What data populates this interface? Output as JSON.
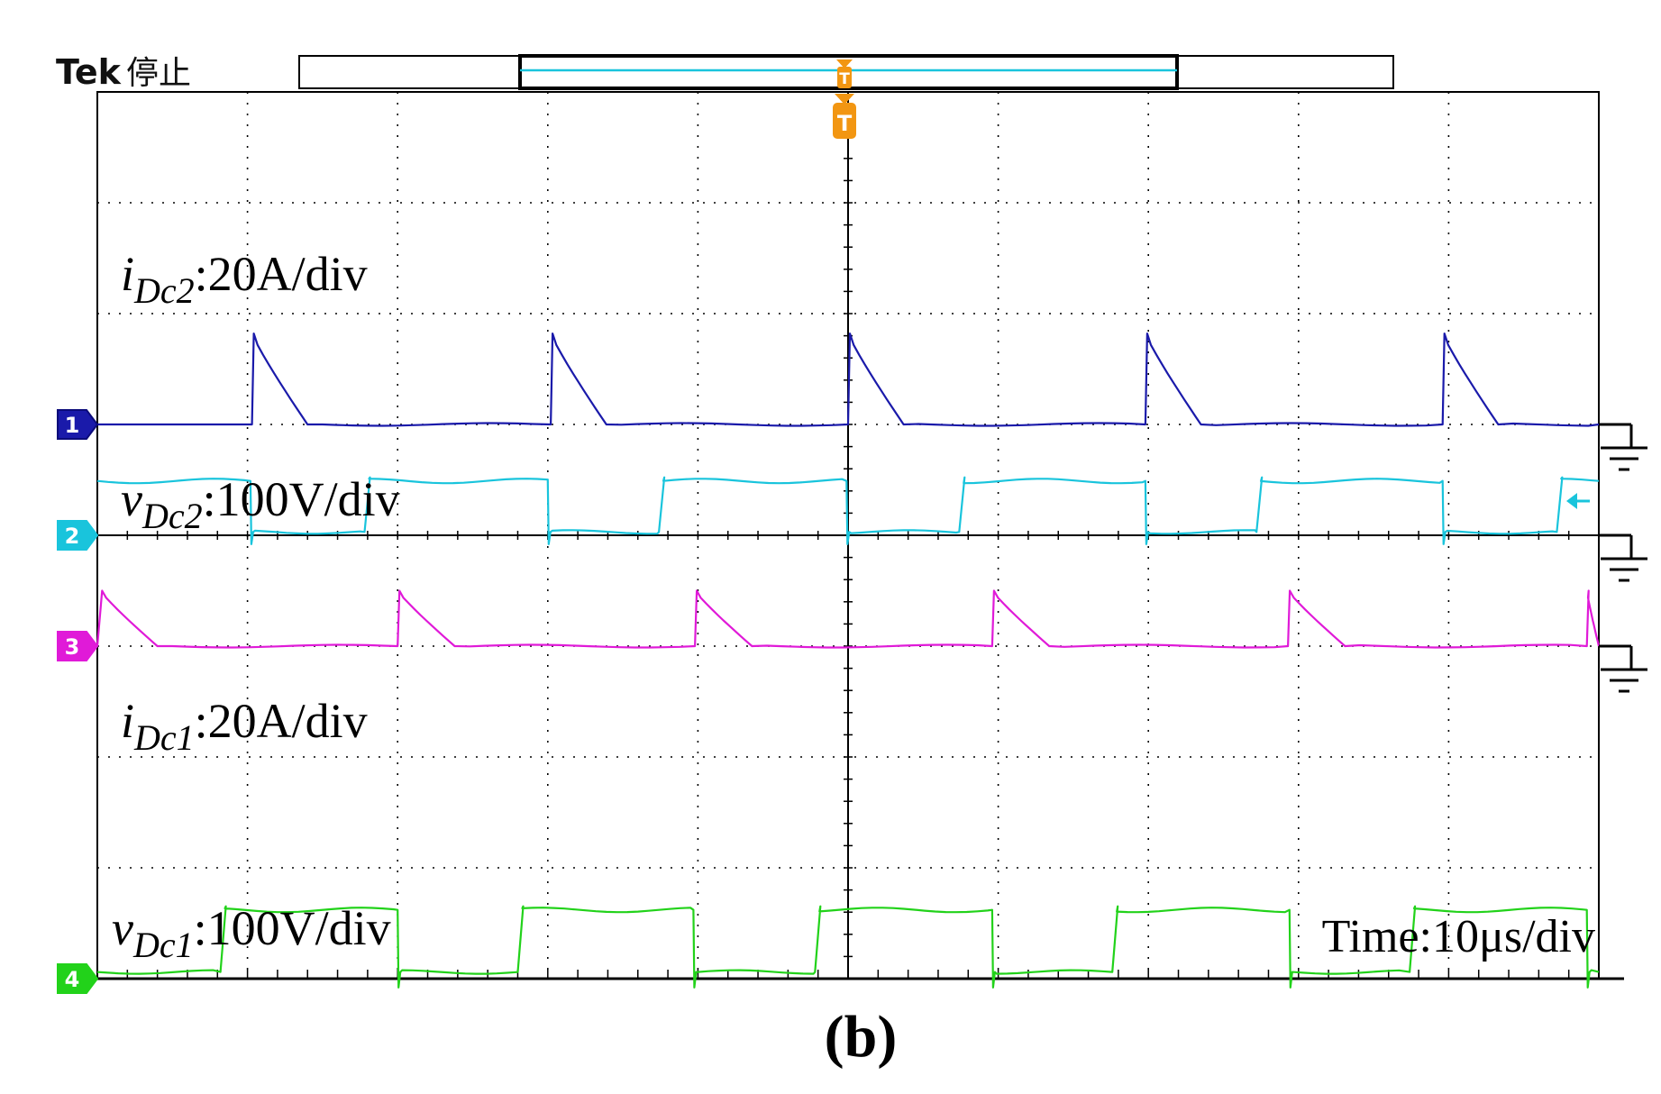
{
  "header": {
    "brand": "Tek",
    "status": "停止"
  },
  "caption": "(b)",
  "timebase_label": "Time:10μs/div",
  "trigger_marker": "T",
  "colors": {
    "ch1": "#1a1aaa",
    "ch2": "#19c4dc",
    "ch3": "#e01ad8",
    "ch4": "#22d21a",
    "trigger": "#f29612"
  },
  "chart_data": {
    "type": "line",
    "title": "",
    "xlabel": "Time",
    "x_scale": "10μs/div",
    "x_divisions": 10,
    "y_divisions": 8,
    "grid": true,
    "series": [
      {
        "channel": "1",
        "name": "i_Dc2",
        "label_main": "i",
        "label_sub": "Dc2",
        "label_scale": ":20A/div",
        "scale": "20A/div",
        "baseline_div": 5.0,
        "waveform": "current-pulse",
        "peak_div": 0.82,
        "low_div": 0.0,
        "edges_div": [
          1.03,
          3.02,
          5.0,
          6.98,
          8.96
        ],
        "decay_div": 0.37
      },
      {
        "channel": "2",
        "name": "v_Dc2",
        "label_main": "v",
        "label_sub": "Dc2",
        "label_scale": ":100V/div",
        "scale": "100V/div",
        "baseline_div": 4.0,
        "waveform": "voltage-square",
        "high_div": 0.49,
        "low_div": 0.03,
        "rise_div": [
          1.78,
          3.74,
          5.74,
          7.72,
          9.72
        ],
        "fall_div": [
          1.02,
          3.0,
          4.99,
          6.98,
          8.96
        ]
      },
      {
        "channel": "3",
        "name": "i_Dc1",
        "label_main": "i",
        "label_sub": "Dc1",
        "label_scale": ":20A/div",
        "scale": "20A/div",
        "baseline_div": 3.0,
        "waveform": "current-pulse",
        "peak_div": 0.5,
        "low_div": 0.0,
        "edges_div": [
          0.02,
          2.0,
          3.98,
          5.96,
          7.93,
          9.92
        ],
        "decay_div": 0.38
      },
      {
        "channel": "4",
        "name": "v_Dc1",
        "label_main": "v",
        "label_sub": "Dc1",
        "label_scale": ":100V/div",
        "scale": "100V/div",
        "baseline_div": 0.0,
        "waveform": "voltage-square",
        "high_div": 0.62,
        "low_div": 0.06,
        "rise_div": [
          0.82,
          2.8,
          4.78,
          6.76,
          8.74
        ],
        "fall_div": [
          2.0,
          3.97,
          5.96,
          7.94,
          9.92
        ]
      }
    ]
  }
}
